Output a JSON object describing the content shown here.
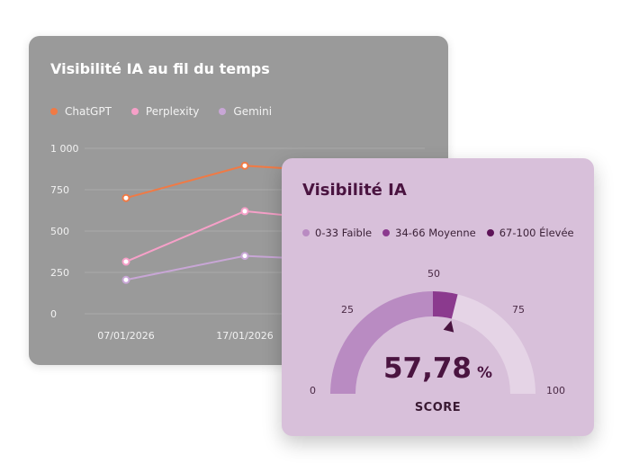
{
  "back_card": {
    "title": "Visibilité IA au fil du temps",
    "legend": [
      {
        "name": "ChatGPT",
        "color": "#f07a45"
      },
      {
        "name": "Perplexity",
        "color": "#f6a0c8"
      },
      {
        "name": "Gemini",
        "color": "#c8a6d6"
      }
    ]
  },
  "chart_data": {
    "type": "line",
    "title": "Visibilité IA au fil du temps",
    "x": [
      "07/01/2026",
      "17/01/2026"
    ],
    "x_tick_labels": [
      "07/01/2026",
      "17/01/2026"
    ],
    "y_tick_labels": [
      "1 000",
      "750",
      "500",
      "250",
      "0"
    ],
    "ylim": [
      0,
      1000
    ],
    "grid": true,
    "legend_position": "top-left",
    "series": [
      {
        "name": "ChatGPT",
        "color": "#f07a45",
        "values": [
          700,
          895
        ]
      },
      {
        "name": "Perplexity",
        "color": "#f6a0c8",
        "values": [
          315,
          620
        ]
      },
      {
        "name": "Gemini",
        "color": "#c8a6d6",
        "values": [
          205,
          350
        ]
      }
    ]
  },
  "front_card": {
    "title": "Visibilité IA",
    "legend": [
      {
        "label": "0-33 Faible",
        "color": "#b98bc2"
      },
      {
        "label": "34-66 Moyenne",
        "color": "#8b3a8e"
      },
      {
        "label": "67-100 Élevée",
        "color": "#5e1458"
      }
    ],
    "gauge": {
      "score": "57,78",
      "unit": "%",
      "label": "SCORE",
      "value": 57.78,
      "ticks": [
        "0",
        "25",
        "50",
        "75",
        "100"
      ],
      "colors": {
        "low": "#b98bc2",
        "mid": "#8b3a8e",
        "high": "#e5d4e6",
        "needle": "#4a1440"
      }
    }
  }
}
